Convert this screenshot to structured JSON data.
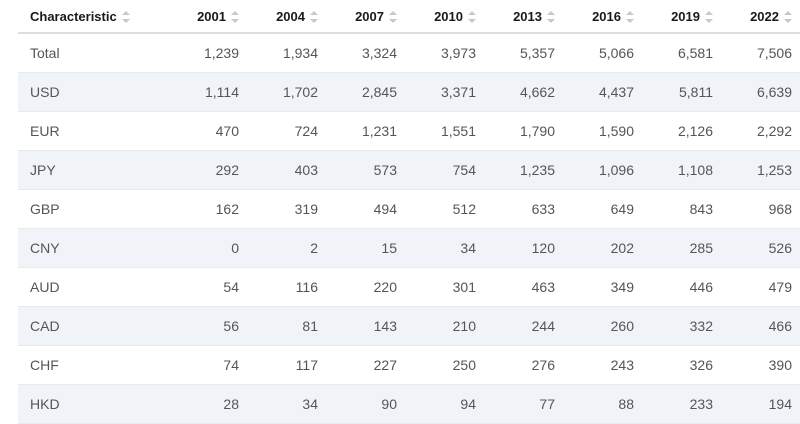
{
  "table": {
    "headers": [
      "Characteristic",
      "2001",
      "2004",
      "2007",
      "2010",
      "2013",
      "2016",
      "2019",
      "2022"
    ],
    "rows": [
      [
        "Total",
        "1,239",
        "1,934",
        "3,324",
        "3,973",
        "5,357",
        "5,066",
        "6,581",
        "7,506"
      ],
      [
        "USD",
        "1,114",
        "1,702",
        "2,845",
        "3,371",
        "4,662",
        "4,437",
        "5,811",
        "6,639"
      ],
      [
        "EUR",
        "470",
        "724",
        "1,231",
        "1,551",
        "1,790",
        "1,590",
        "2,126",
        "2,292"
      ],
      [
        "JPY",
        "292",
        "403",
        "573",
        "754",
        "1,235",
        "1,096",
        "1,108",
        "1,253"
      ],
      [
        "GBP",
        "162",
        "319",
        "494",
        "512",
        "633",
        "649",
        "843",
        "968"
      ],
      [
        "CNY",
        "0",
        "2",
        "15",
        "34",
        "120",
        "202",
        "285",
        "526"
      ],
      [
        "AUD",
        "54",
        "116",
        "220",
        "301",
        "463",
        "349",
        "446",
        "479"
      ],
      [
        "CAD",
        "56",
        "81",
        "143",
        "210",
        "244",
        "260",
        "332",
        "466"
      ],
      [
        "CHF",
        "74",
        "117",
        "227",
        "250",
        "276",
        "243",
        "326",
        "390"
      ],
      [
        "HKD",
        "28",
        "34",
        "90",
        "94",
        "77",
        "88",
        "233",
        "194"
      ]
    ]
  }
}
